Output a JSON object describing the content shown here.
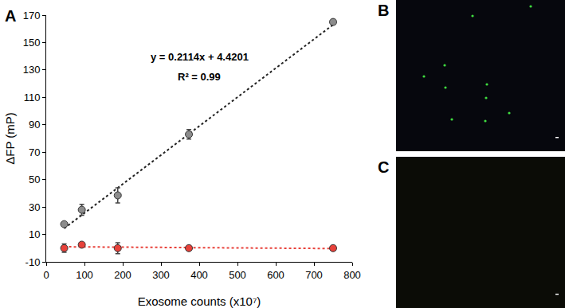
{
  "panel_labels": [
    "A",
    "B",
    "C"
  ],
  "chart_data": {
    "type": "scatter",
    "x_label": "Exosome counts (x10⁷)",
    "y_label": "ΔFP (mP)",
    "annotations": [
      "y = 0.2114x + 4.4201",
      "R² = 0.99"
    ],
    "xlim": [
      0,
      800
    ],
    "xticks": [
      0,
      100,
      200,
      300,
      400,
      500,
      600,
      700,
      800
    ],
    "ylim": [
      -10,
      170
    ],
    "yticks": [
      -10,
      10,
      30,
      50,
      70,
      90,
      110,
      130,
      150,
      170
    ],
    "grid": false,
    "series": [
      {
        "type": "line",
        "line_style": "dotted",
        "color": "#222222",
        "x": [
          47,
          750
        ],
        "values": [
          14.4,
          163.0
        ]
      },
      {
        "type": "line",
        "line_style": "dotted",
        "color": "#e8413a",
        "x": [
          47,
          750
        ],
        "values": [
          1.0,
          -0.3
        ]
      },
      {
        "type": "scatter",
        "marker": "circle",
        "color": "#8c8c8c",
        "x": [
          47,
          93,
          187,
          373,
          750
        ],
        "values": [
          17.5,
          28,
          38.5,
          83,
          165
        ],
        "errors": [
          1.5,
          4,
          5.5,
          3.5,
          1
        ]
      },
      {
        "type": "scatter",
        "marker": "circle",
        "color": "#e8413a",
        "x": [
          47,
          93,
          187,
          373,
          750
        ],
        "values": [
          0,
          2.5,
          0,
          0,
          0
        ],
        "errors": [
          3,
          1,
          4,
          0.5,
          0.5
        ]
      }
    ]
  }
}
